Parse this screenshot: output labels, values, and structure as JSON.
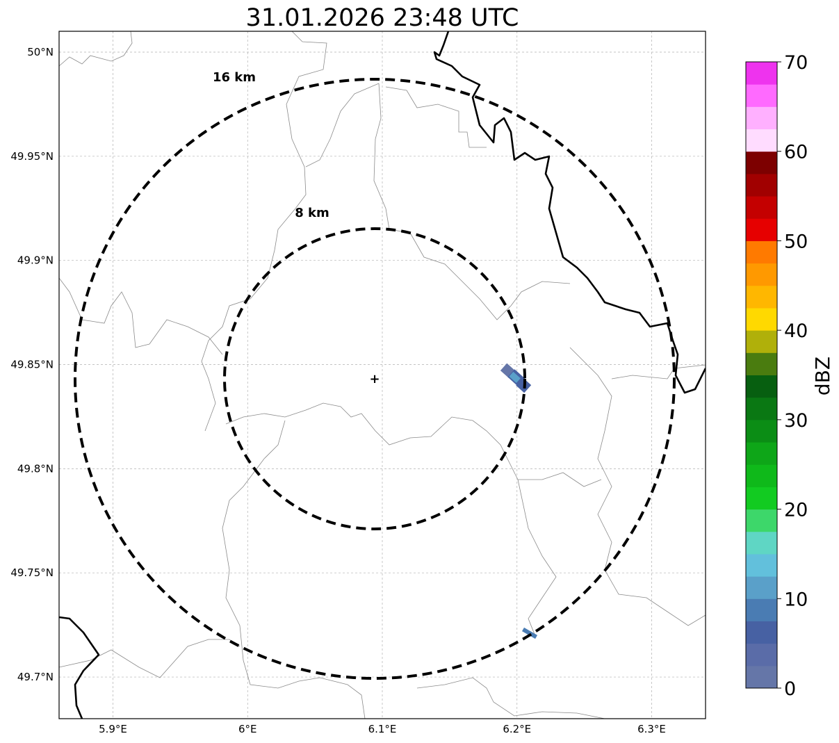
{
  "title": "31.01.2026 23:48 UTC",
  "map": {
    "extent": {
      "lon_min": 5.86,
      "lon_max": 6.34,
      "lat_min": 49.68,
      "lat_max": 50.01
    },
    "lon_ticks": [
      {
        "value": 5.9,
        "label": "5.9°E"
      },
      {
        "value": 6.0,
        "label": "6°E"
      },
      {
        "value": 6.1,
        "label": "6.1°E"
      },
      {
        "value": 6.2,
        "label": "6.2°E"
      },
      {
        "value": 6.3,
        "label": "6.3°E"
      }
    ],
    "lat_ticks": [
      {
        "value": 50.0,
        "label": "50°N"
      },
      {
        "value": 49.95,
        "label": "49.95°N"
      },
      {
        "value": 49.9,
        "label": "49.9°N"
      },
      {
        "value": 49.85,
        "label": "49.85°N"
      },
      {
        "value": 49.8,
        "label": "49.8°N"
      },
      {
        "value": 49.75,
        "label": "49.75°N"
      },
      {
        "value": 49.7,
        "label": "49.7°N"
      }
    ],
    "radar_site": {
      "lon": 6.095,
      "lat": 49.843,
      "symbol": "+"
    },
    "range_rings": [
      {
        "label": "8 km",
        "radius_km": 8
      },
      {
        "label": "16 km",
        "radius_km": 16
      }
    ],
    "ring_color": "#000000"
  },
  "colorbar": {
    "label": "dBZ",
    "min": 0,
    "max": 70,
    "step": 2.5,
    "tick_labels": [
      "0",
      "10",
      "20",
      "30",
      "40",
      "50",
      "60",
      "70"
    ],
    "colors": [
      "#6576a8",
      "#5a6ca8",
      "#4761a3",
      "#4a7cb3",
      "#5aa0c9",
      "#62c0dc",
      "#5fd6c4",
      "#3dd76a",
      "#12cb21",
      "#0fb91a",
      "#0ea618",
      "#0b8d15",
      "#0a7813",
      "#075f10",
      "#4a7c0f",
      "#b0b00a",
      "#ffd900",
      "#ffb700",
      "#ff9900",
      "#ff7a00",
      "#e60000",
      "#c40000",
      "#a10000",
      "#7d0000",
      "#ffdcff",
      "#ffb0ff",
      "#ff6aff",
      "#ee33ee"
    ]
  },
  "echoes": [
    {
      "name": "east-echo-cluster",
      "lon": 6.2,
      "lat": 49.843,
      "dbz": [
        2,
        5,
        12
      ]
    },
    {
      "name": "southeast-echo",
      "lon": 6.208,
      "lat": 49.721,
      "dbz": [
        8
      ]
    }
  ]
}
